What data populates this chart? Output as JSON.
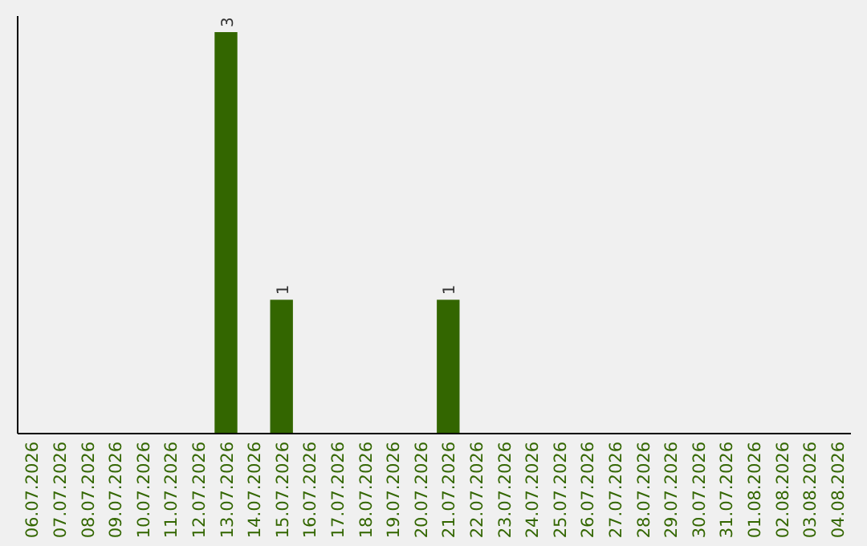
{
  "chart_data": {
    "type": "bar",
    "categories": [
      "06.07.2026",
      "07.07.2026",
      "08.07.2026",
      "09.07.2026",
      "10.07.2026",
      "11.07.2026",
      "12.07.2026",
      "13.07.2026",
      "14.07.2026",
      "15.07.2026",
      "16.07.2026",
      "17.07.2026",
      "18.07.2026",
      "19.07.2026",
      "20.07.2026",
      "21.07.2026",
      "22.07.2026",
      "23.07.2026",
      "24.07.2026",
      "25.07.2026",
      "26.07.2026",
      "27.07.2026",
      "28.07.2026",
      "29.07.2026",
      "30.07.2026",
      "31.07.2026",
      "01.08.2026",
      "02.08.2026",
      "03.08.2026",
      "04.08.2026"
    ],
    "values": [
      0,
      0,
      0,
      0,
      0,
      0,
      0,
      3,
      0,
      1,
      0,
      0,
      0,
      0,
      0,
      1,
      0,
      0,
      0,
      0,
      0,
      0,
      0,
      0,
      0,
      0,
      0,
      0,
      0,
      0
    ],
    "value_labels": [
      null,
      null,
      null,
      null,
      null,
      null,
      null,
      "3",
      null,
      "1",
      null,
      null,
      null,
      null,
      null,
      "1",
      null,
      null,
      null,
      null,
      null,
      null,
      null,
      null,
      null,
      null,
      null,
      null,
      null,
      null
    ],
    "color": "#336600"
  }
}
